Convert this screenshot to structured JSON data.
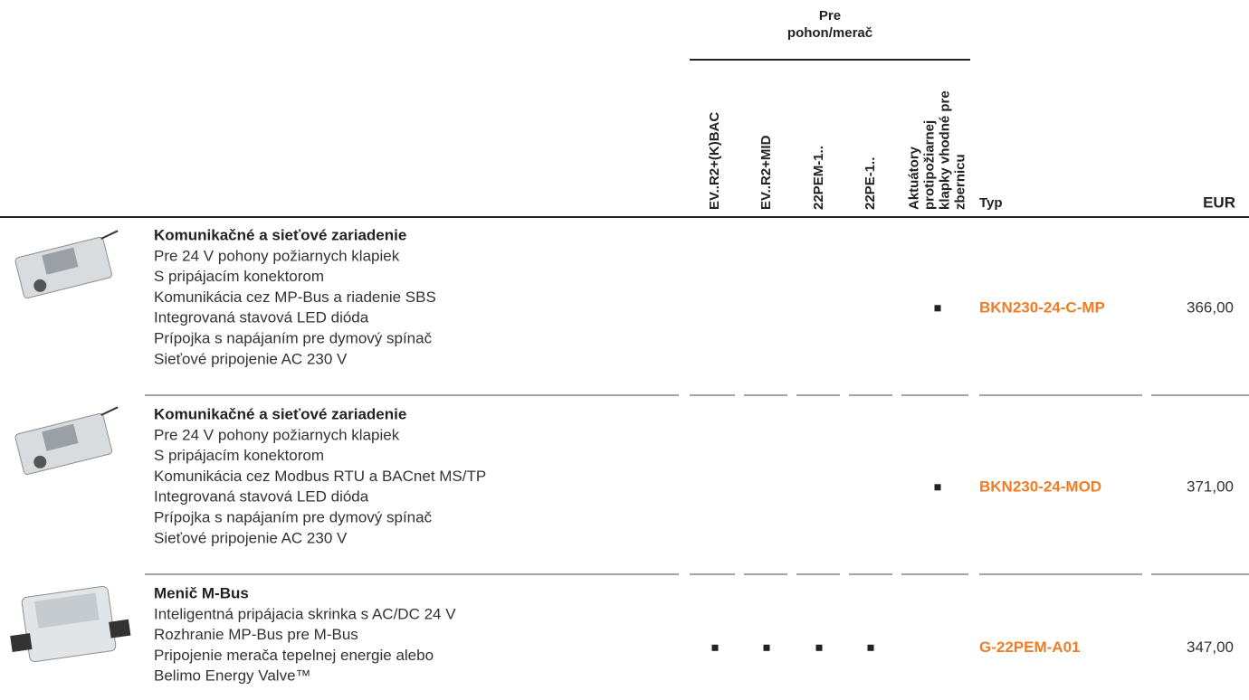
{
  "header": {
    "group": [
      "Pre",
      "pohon/merač"
    ],
    "columns": [
      [
        "EV..R2+(K)BAC"
      ],
      [
        "EV..R2+MID"
      ],
      [
        "22PEM-1.."
      ],
      [
        "22PE-1.."
      ],
      [
        "Aktuátory",
        "protipožiarnej",
        "klapky vhodné pre",
        "zbernicu"
      ]
    ],
    "type": "Typ",
    "price": "EUR"
  },
  "rows": [
    {
      "title": "Komunikačné a sieťové zariadenie",
      "lines": [
        "Pre 24 V pohony požiarnych klapiek",
        "S pripájacím konektorom",
        "Komunikácia cez MP-Bus a riadenie SBS",
        "Integrovaná stavová LED dióda",
        "Prípojka s napájaním pre dymový spínač",
        "Sieťové pripojenie AC 230 V"
      ],
      "compatible": [
        false,
        false,
        false,
        false,
        true
      ],
      "type": "BKN230-24-C-MP",
      "price": "366,00"
    },
    {
      "title": "Komunikačné a sieťové zariadenie",
      "lines": [
        "Pre 24 V pohony požiarnych klapiek",
        "S pripájacím konektorom",
        "Komunikácia cez Modbus RTU a BACnet MS/TP",
        "Integrovaná stavová LED dióda",
        "Prípojka s napájaním pre dymový spínač",
        "Sieťové pripojenie AC 230 V"
      ],
      "compatible": [
        false,
        false,
        false,
        false,
        true
      ],
      "type": "BKN230-24-MOD",
      "price": "371,00"
    },
    {
      "title": "Menič M-Bus",
      "lines": [
        "Inteligentná pripájacia skrinka s AC/DC 24 V",
        "Rozhranie MP-Bus pre M-Bus",
        "Pripojenie merača tepelnej energie alebo",
        "Belimo Energy Valve™"
      ],
      "compatible": [
        true,
        true,
        true,
        true,
        false
      ],
      "type": "G-22PEM-A01",
      "price": "347,00"
    }
  ]
}
